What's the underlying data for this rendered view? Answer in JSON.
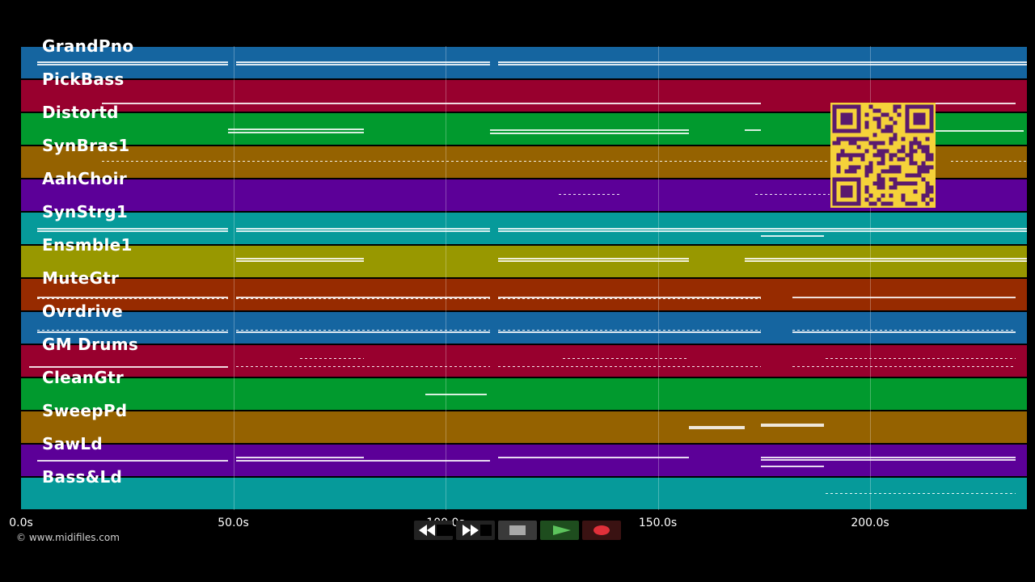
{
  "app": {
    "copyright": "© www.midifiles.com"
  },
  "timeline": {
    "ticks": [
      {
        "seconds": 0,
        "label": "0.0s"
      },
      {
        "seconds": 50,
        "label": "50.0s"
      },
      {
        "seconds": 100,
        "label": "100.0s"
      },
      {
        "seconds": 150,
        "label": "150.0s"
      },
      {
        "seconds": 200,
        "label": "200.0s"
      }
    ],
    "duration_seconds": 237
  },
  "tracks": [
    {
      "name": "GrandPno",
      "color": "#1565a0"
    },
    {
      "name": "PickBass",
      "color": "#98002e"
    },
    {
      "name": "Distortd",
      "color": "#019a2e"
    },
    {
      "name": "SynBras1",
      "color": "#956200"
    },
    {
      "name": "AahChoir",
      "color": "#5c0098"
    },
    {
      "name": "SynStrg1",
      "color": "#069a9a"
    },
    {
      "name": "Ensmble1",
      "color": "#989800"
    },
    {
      "name": "MuteGtr",
      "color": "#972b00"
    },
    {
      "name": "Ovrdrive",
      "color": "#1565a0"
    },
    {
      "name": "GM Drums",
      "color": "#98002e"
    },
    {
      "name": "CleanGtr",
      "color": "#019a2e"
    },
    {
      "name": "SweepPd",
      "color": "#956200"
    },
    {
      "name": "SawLd",
      "color": "#5c0098"
    },
    {
      "name": "Bass&Ld",
      "color": "#069a9a"
    }
  ],
  "transport": {
    "buttons": [
      {
        "name": "rewind-icon"
      },
      {
        "name": "fast-forward-icon"
      },
      {
        "name": "stop-icon"
      },
      {
        "name": "play-icon"
      },
      {
        "name": "record-icon"
      }
    ]
  },
  "qr_code": {
    "color_bg": "#f5d23a",
    "color_fg": "#5a1a6e"
  }
}
